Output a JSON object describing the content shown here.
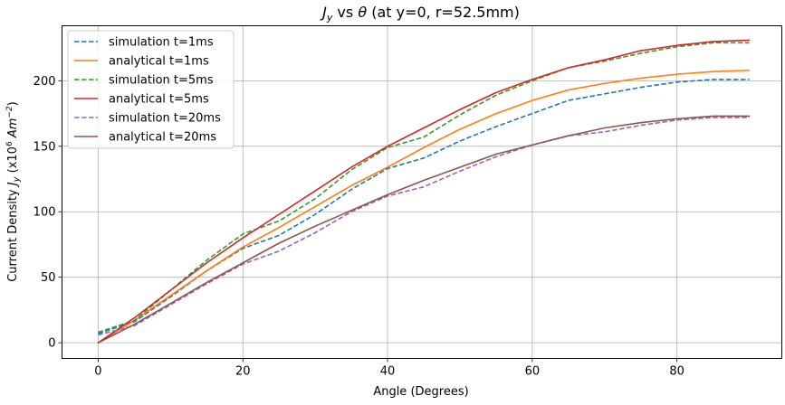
{
  "chart_data": {
    "type": "line",
    "title": "J_y vs θ (at y=0, r=52.5mm)",
    "title_parts": {
      "var": "J",
      "sub": "y",
      "middle": " vs ",
      "theta": "θ",
      "rest": " (at y=0, r=52.5mm)"
    },
    "xlabel": "Angle (Degrees)",
    "ylabel": "Current Density J_y (x10^6 Am^-2)",
    "ylabel_parts": {
      "prefix": "Current Density ",
      "var": "J",
      "sub": "y",
      "open": " (x10",
      "exp": "6",
      "unit": " Am",
      "unit_exp": "−2",
      "close": ")"
    },
    "xlim": [
      -5,
      94.5
    ],
    "ylim": [
      -12,
      242
    ],
    "xticks": [
      0,
      20,
      40,
      60,
      80
    ],
    "yticks": [
      0,
      50,
      100,
      150,
      200
    ],
    "grid": true,
    "legend_position": "top-left",
    "x": [
      0,
      5,
      10,
      15,
      20,
      25,
      30,
      35,
      40,
      45,
      50,
      55,
      60,
      65,
      70,
      75,
      80,
      85,
      90
    ],
    "series": [
      {
        "name": "simulation t=1ms",
        "style": "dashed",
        "color": "#1f77b4",
        "values": [
          7,
          16,
          35,
          55,
          72,
          82,
          98,
          117,
          133,
          141,
          154,
          165,
          175,
          185,
          190,
          195,
          199,
          201,
          201
        ]
      },
      {
        "name": "analytical t=1ms",
        "style": "solid",
        "color": "#ff7f0e",
        "values": [
          0,
          17,
          36,
          55,
          73,
          88,
          104,
          120,
          134,
          149,
          163,
          175,
          185,
          193,
          198,
          202,
          205,
          207,
          208
        ]
      },
      {
        "name": "simulation t=5ms",
        "style": "dashed",
        "color": "#2ca02c",
        "values": [
          8,
          17,
          40,
          63,
          83,
          93,
          110,
          132,
          149,
          157,
          174,
          189,
          200,
          210,
          215,
          221,
          226,
          229,
          229
        ]
      },
      {
        "name": "analytical t=5ms",
        "style": "solid",
        "color": "#d62728",
        "values": [
          0,
          19,
          40,
          61,
          80,
          98,
          116,
          134,
          150,
          164,
          178,
          191,
          201,
          210,
          216,
          223,
          227,
          230,
          231
        ]
      },
      {
        "name": "simulation t=20ms",
        "style": "dashed",
        "color": "#9467bd",
        "values": [
          6,
          13,
          29,
          45,
          60,
          70,
          84,
          100,
          112,
          119,
          131,
          142,
          151,
          158,
          161,
          166,
          170,
          172,
          172
        ]
      },
      {
        "name": "analytical t=20ms",
        "style": "solid",
        "color": "#8c564b",
        "values": [
          0,
          14,
          30,
          46,
          61,
          76,
          89,
          101,
          113,
          124,
          134,
          144,
          151,
          158,
          164,
          168,
          171,
          173,
          173
        ]
      }
    ]
  }
}
